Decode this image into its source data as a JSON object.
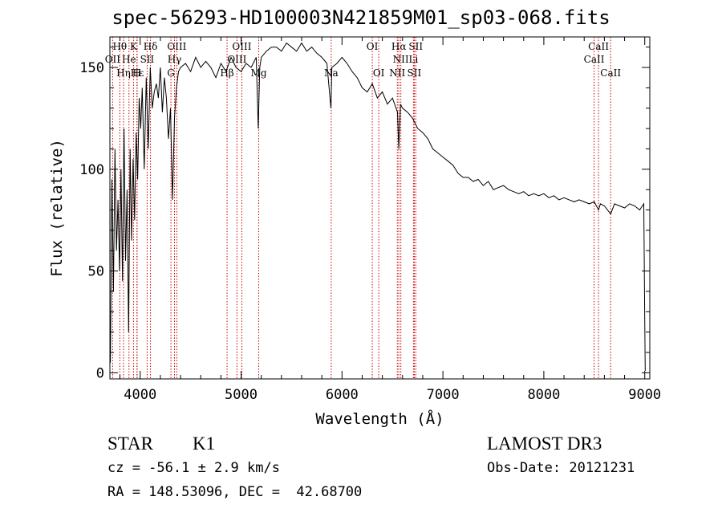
{
  "chart_data": {
    "type": "line",
    "title": "spec-56293-HD100003N421859M01_sp03-068.fits",
    "xlabel": "Wavelength (Å)",
    "ylabel": "Flux (relative)",
    "xlim": [
      3700,
      9050
    ],
    "ylim": [
      -3,
      165
    ],
    "x_ticks": [
      4000,
      5000,
      6000,
      7000,
      8000,
      9000
    ],
    "x_tick_labels": [
      "4000",
      "5000",
      "6000",
      "7000",
      "8000",
      "9000"
    ],
    "y_ticks": [
      0,
      50,
      100,
      150
    ],
    "y_tick_labels": [
      "0",
      "50",
      "100",
      "150"
    ],
    "series": [
      {
        "name": "flux",
        "x": [
          3705,
          3720,
          3735,
          3750,
          3765,
          3780,
          3795,
          3810,
          3825,
          3840,
          3855,
          3870,
          3885,
          3900,
          3915,
          3930,
          3945,
          3960,
          3975,
          3990,
          4005,
          4020,
          4040,
          4060,
          4080,
          4100,
          4120,
          4140,
          4160,
          4180,
          4200,
          4220,
          4240,
          4260,
          4280,
          4300,
          4320,
          4340,
          4360,
          4380,
          4400,
          4450,
          4500,
          4550,
          4600,
          4650,
          4700,
          4750,
          4800,
          4850,
          4900,
          4950,
          5000,
          5050,
          5100,
          5150,
          5170,
          5185,
          5200,
          5250,
          5300,
          5350,
          5400,
          5450,
          5500,
          5550,
          5600,
          5650,
          5700,
          5750,
          5800,
          5850,
          5890,
          5900,
          5950,
          6000,
          6050,
          6100,
          6150,
          6200,
          6250,
          6300,
          6350,
          6400,
          6450,
          6500,
          6550,
          6563,
          6580,
          6600,
          6650,
          6700,
          6750,
          6800,
          6850,
          6900,
          6950,
          7000,
          7050,
          7100,
          7150,
          7200,
          7250,
          7300,
          7350,
          7400,
          7450,
          7500,
          7550,
          7600,
          7650,
          7700,
          7750,
          7800,
          7850,
          7900,
          7950,
          8000,
          8050,
          8100,
          8150,
          8200,
          8250,
          8300,
          8350,
          8400,
          8450,
          8500,
          8542,
          8560,
          8600,
          8662,
          8700,
          8750,
          8800,
          8850,
          8900,
          8950,
          8990,
          9000,
          9005
        ],
        "y": [
          5,
          95,
          40,
          110,
          60,
          85,
          50,
          100,
          45,
          120,
          55,
          90,
          20,
          110,
          65,
          105,
          75,
          118,
          95,
          135,
          120,
          140,
          100,
          145,
          110,
          150,
          130,
          138,
          142,
          135,
          150,
          128,
          145,
          135,
          115,
          130,
          85,
          125,
          140,
          148,
          150,
          152,
          148,
          155,
          150,
          153,
          150,
          145,
          152,
          148,
          155,
          150,
          148,
          152,
          150,
          155,
          120,
          150,
          155,
          158,
          160,
          160,
          158,
          162,
          160,
          158,
          162,
          158,
          160,
          157,
          155,
          152,
          130,
          150,
          152,
          155,
          152,
          148,
          145,
          140,
          138,
          142,
          135,
          138,
          132,
          135,
          128,
          110,
          132,
          130,
          128,
          125,
          120,
          118,
          115,
          110,
          108,
          106,
          104,
          102,
          98,
          96,
          96,
          94,
          95,
          92,
          94,
          90,
          91,
          92,
          90,
          89,
          88,
          89,
          87,
          88,
          87,
          88,
          86,
          87,
          85,
          86,
          85,
          84,
          85,
          84,
          83,
          84,
          80,
          83,
          82,
          78,
          83,
          82,
          81,
          83,
          82,
          80,
          83,
          26,
          1
        ]
      }
    ],
    "line_markers": [
      {
        "label": "Hθ",
        "x": 3798,
        "row": 1
      },
      {
        "label": "K",
        "x": 3934,
        "row": 1
      },
      {
        "label": "Hδ",
        "x": 4102,
        "row": 1
      },
      {
        "label": "OIII",
        "x": 4363,
        "row": 1
      },
      {
        "label": "OIII",
        "x": 5007,
        "row": 1
      },
      {
        "label": "OI",
        "x": 6300,
        "row": 1
      },
      {
        "label": "Hα",
        "x": 6563,
        "row": 1
      },
      {
        "label": "SII",
        "x": 6731,
        "row": 1
      },
      {
        "label": "CaII",
        "x": 8542,
        "row": 1
      },
      {
        "label": "OII",
        "x": 3727,
        "row": 2
      },
      {
        "label": "He",
        "x": 3889,
        "row": 2
      },
      {
        "label": "SII",
        "x": 4069,
        "row": 2
      },
      {
        "label": "Hγ",
        "x": 4340,
        "row": 2
      },
      {
        "label": "OIII",
        "x": 4959,
        "row": 2
      },
      {
        "label": "NII",
        "x": 6583,
        "row": 2
      },
      {
        "label": "Li",
        "x": 6708,
        "row": 2
      },
      {
        "label": "CaII",
        "x": 8498,
        "row": 2
      },
      {
        "label": "Hε",
        "x": 3970,
        "row": 3
      },
      {
        "label": "Hη",
        "x": 3835,
        "row": 3
      },
      {
        "label": "H",
        "x": 3968,
        "row": 3
      },
      {
        "label": "G",
        "x": 4305,
        "row": 3
      },
      {
        "label": "Hβ",
        "x": 4861,
        "row": 3
      },
      {
        "label": "Mg",
        "x": 5175,
        "row": 3
      },
      {
        "label": "Na",
        "x": 5893,
        "row": 3
      },
      {
        "label": "OI",
        "x": 6364,
        "row": 3
      },
      {
        "label": "NII",
        "x": 6548,
        "row": 3
      },
      {
        "label": "SII",
        "x": 6716,
        "row": 3
      },
      {
        "label": "CaII",
        "x": 8662,
        "row": 3
      }
    ],
    "line_color": "#000000",
    "marker_color": "#cc0000"
  },
  "info": {
    "object_type": "STAR",
    "subclass": "K1",
    "survey": "LAMOST DR3",
    "redshift": "cz = -56.1 ± 2.9 km/s",
    "obs_date": "Obs-Date: 20121231",
    "coords": "RA = 148.53096, DEC =  42.68700"
  }
}
